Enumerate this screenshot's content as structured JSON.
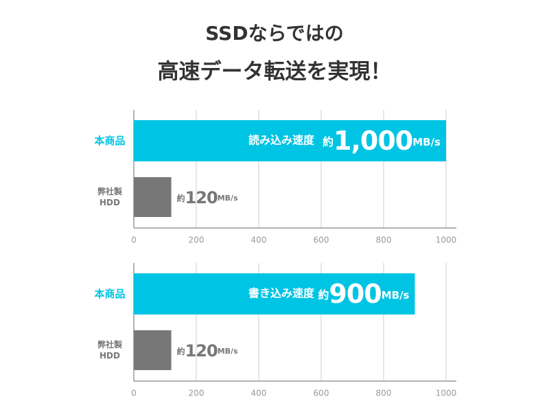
{
  "title": [
    "SSDならではの",
    "高速データ転送を実現！"
  ],
  "chart_data": [
    {
      "type": "bar",
      "orientation": "horizontal",
      "categories": [
        "本商品",
        "弊社製\nHDD"
      ],
      "values": [
        1000,
        120
      ],
      "value_labels": [
        "約1,000MB/s",
        "約120MB/s"
      ],
      "metric": "読み込み速度",
      "colors": [
        "#00c4e4",
        "#777777"
      ],
      "xlim": [
        0,
        1000
      ],
      "xticks": [
        0,
        200,
        400,
        600,
        800,
        1000
      ],
      "grid": true
    },
    {
      "type": "bar",
      "orientation": "horizontal",
      "categories": [
        "本商品",
        "弊社製\nHDD"
      ],
      "values": [
        900,
        120
      ],
      "value_labels": [
        "約900MB/s",
        "約120MB/s"
      ],
      "metric": "書き込み速度",
      "colors": [
        "#00c4e4",
        "#777777"
      ],
      "xlim": [
        0,
        1000
      ],
      "xticks": [
        0,
        200,
        400,
        600,
        800,
        1000
      ],
      "grid": true
    }
  ]
}
